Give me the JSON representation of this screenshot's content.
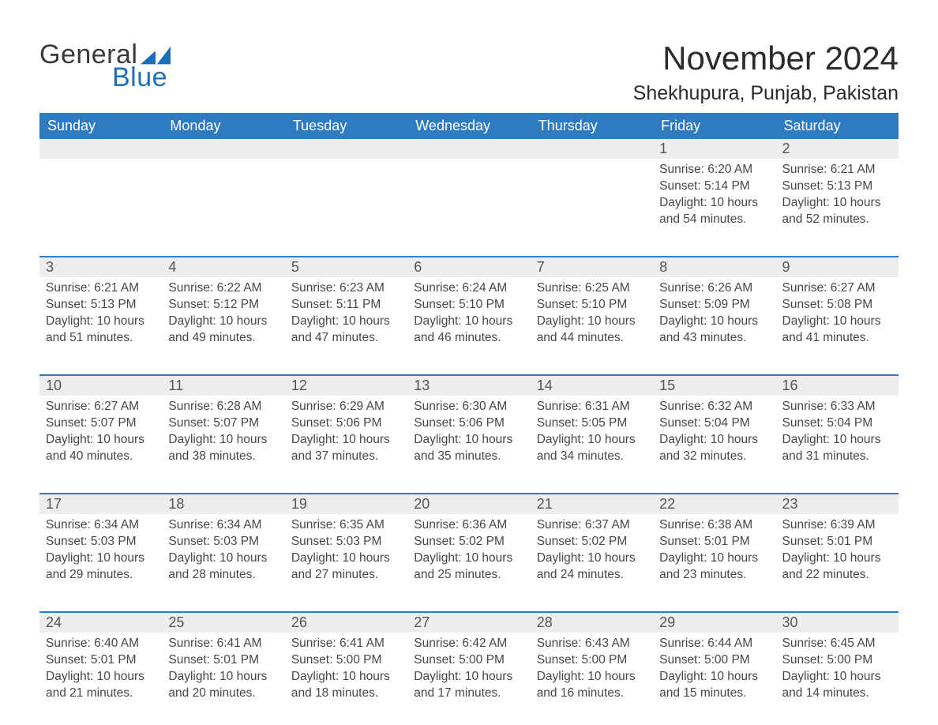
{
  "logo": {
    "general": "General",
    "blue": "Blue",
    "flag_color": "#1d6fb8"
  },
  "title": "November 2024",
  "location": "Shekhupura, Punjab, Pakistan",
  "colors": {
    "header_bg": "#2f7bc0",
    "header_text": "#ffffff",
    "row_separator": "#2f7bc0",
    "daynum_bg": "#ededed",
    "text": "#474747",
    "page_bg": "#ffffff"
  },
  "typography": {
    "title_fontsize": 42,
    "location_fontsize": 25,
    "dayheader_fontsize": 18,
    "daynum_fontsize": 18,
    "body_fontsize": 15.5
  },
  "day_headers": [
    "Sunday",
    "Monday",
    "Tuesday",
    "Wednesday",
    "Thursday",
    "Friday",
    "Saturday"
  ],
  "labels": {
    "sunrise": "Sunrise:",
    "sunset": "Sunset:",
    "daylight": "Daylight:"
  },
  "weeks": [
    [
      null,
      null,
      null,
      null,
      null,
      {
        "n": "1",
        "sunrise": "6:20 AM",
        "sunset": "5:14 PM",
        "daylight": "10 hours and 54 minutes."
      },
      {
        "n": "2",
        "sunrise": "6:21 AM",
        "sunset": "5:13 PM",
        "daylight": "10 hours and 52 minutes."
      }
    ],
    [
      {
        "n": "3",
        "sunrise": "6:21 AM",
        "sunset": "5:13 PM",
        "daylight": "10 hours and 51 minutes."
      },
      {
        "n": "4",
        "sunrise": "6:22 AM",
        "sunset": "5:12 PM",
        "daylight": "10 hours and 49 minutes."
      },
      {
        "n": "5",
        "sunrise": "6:23 AM",
        "sunset": "5:11 PM",
        "daylight": "10 hours and 47 minutes."
      },
      {
        "n": "6",
        "sunrise": "6:24 AM",
        "sunset": "5:10 PM",
        "daylight": "10 hours and 46 minutes."
      },
      {
        "n": "7",
        "sunrise": "6:25 AM",
        "sunset": "5:10 PM",
        "daylight": "10 hours and 44 minutes."
      },
      {
        "n": "8",
        "sunrise": "6:26 AM",
        "sunset": "5:09 PM",
        "daylight": "10 hours and 43 minutes."
      },
      {
        "n": "9",
        "sunrise": "6:27 AM",
        "sunset": "5:08 PM",
        "daylight": "10 hours and 41 minutes."
      }
    ],
    [
      {
        "n": "10",
        "sunrise": "6:27 AM",
        "sunset": "5:07 PM",
        "daylight": "10 hours and 40 minutes."
      },
      {
        "n": "11",
        "sunrise": "6:28 AM",
        "sunset": "5:07 PM",
        "daylight": "10 hours and 38 minutes."
      },
      {
        "n": "12",
        "sunrise": "6:29 AM",
        "sunset": "5:06 PM",
        "daylight": "10 hours and 37 minutes."
      },
      {
        "n": "13",
        "sunrise": "6:30 AM",
        "sunset": "5:06 PM",
        "daylight": "10 hours and 35 minutes."
      },
      {
        "n": "14",
        "sunrise": "6:31 AM",
        "sunset": "5:05 PM",
        "daylight": "10 hours and 34 minutes."
      },
      {
        "n": "15",
        "sunrise": "6:32 AM",
        "sunset": "5:04 PM",
        "daylight": "10 hours and 32 minutes."
      },
      {
        "n": "16",
        "sunrise": "6:33 AM",
        "sunset": "5:04 PM",
        "daylight": "10 hours and 31 minutes."
      }
    ],
    [
      {
        "n": "17",
        "sunrise": "6:34 AM",
        "sunset": "5:03 PM",
        "daylight": "10 hours and 29 minutes."
      },
      {
        "n": "18",
        "sunrise": "6:34 AM",
        "sunset": "5:03 PM",
        "daylight": "10 hours and 28 minutes."
      },
      {
        "n": "19",
        "sunrise": "6:35 AM",
        "sunset": "5:03 PM",
        "daylight": "10 hours and 27 minutes."
      },
      {
        "n": "20",
        "sunrise": "6:36 AM",
        "sunset": "5:02 PM",
        "daylight": "10 hours and 25 minutes."
      },
      {
        "n": "21",
        "sunrise": "6:37 AM",
        "sunset": "5:02 PM",
        "daylight": "10 hours and 24 minutes."
      },
      {
        "n": "22",
        "sunrise": "6:38 AM",
        "sunset": "5:01 PM",
        "daylight": "10 hours and 23 minutes."
      },
      {
        "n": "23",
        "sunrise": "6:39 AM",
        "sunset": "5:01 PM",
        "daylight": "10 hours and 22 minutes."
      }
    ],
    [
      {
        "n": "24",
        "sunrise": "6:40 AM",
        "sunset": "5:01 PM",
        "daylight": "10 hours and 21 minutes."
      },
      {
        "n": "25",
        "sunrise": "6:41 AM",
        "sunset": "5:01 PM",
        "daylight": "10 hours and 20 minutes."
      },
      {
        "n": "26",
        "sunrise": "6:41 AM",
        "sunset": "5:00 PM",
        "daylight": "10 hours and 18 minutes."
      },
      {
        "n": "27",
        "sunrise": "6:42 AM",
        "sunset": "5:00 PM",
        "daylight": "10 hours and 17 minutes."
      },
      {
        "n": "28",
        "sunrise": "6:43 AM",
        "sunset": "5:00 PM",
        "daylight": "10 hours and 16 minutes."
      },
      {
        "n": "29",
        "sunrise": "6:44 AM",
        "sunset": "5:00 PM",
        "daylight": "10 hours and 15 minutes."
      },
      {
        "n": "30",
        "sunrise": "6:45 AM",
        "sunset": "5:00 PM",
        "daylight": "10 hours and 14 minutes."
      }
    ]
  ]
}
